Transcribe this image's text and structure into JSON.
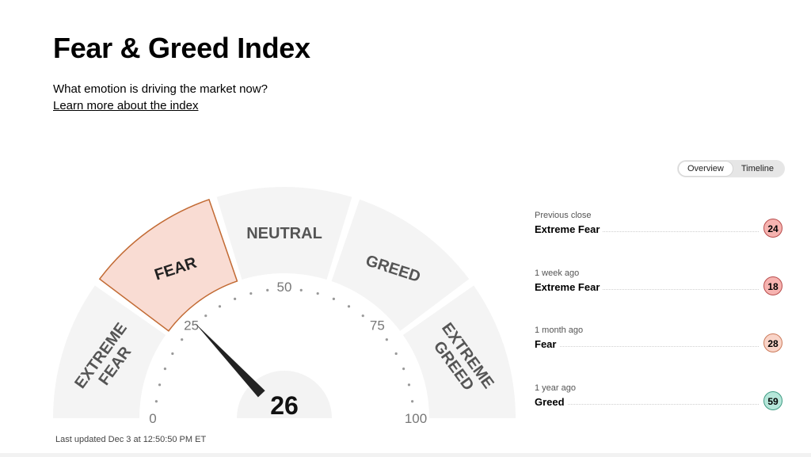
{
  "header": {
    "title": "Fear & Greed Index",
    "subtitle": "What emotion is driving the market now?",
    "learn_more": "Learn more about the index"
  },
  "tabs": [
    {
      "label": "Overview",
      "active": true
    },
    {
      "label": "Timeline",
      "active": false
    }
  ],
  "gauge": {
    "value": 26,
    "value_text": "26",
    "min": 0,
    "max": 100,
    "active_segment": "fear",
    "segments": {
      "extreme_fear": [
        "EXTREME",
        "FEAR"
      ],
      "fear": "FEAR",
      "neutral": "NEUTRAL",
      "greed": "GREED",
      "extreme_greed": [
        "EXTREME",
        "GREED"
      ]
    },
    "ticks": {
      "t0": "0",
      "t25": "25",
      "t50": "50",
      "t75": "75",
      "t100": "100"
    },
    "colors": {
      "active_fill": "#f9dcd3",
      "active_stroke": "#c26a33",
      "inactive": "#f4f4f4",
      "needle": "#222222"
    }
  },
  "history": [
    {
      "label": "Previous close",
      "value": "Extreme Fear",
      "score": "24",
      "rating": "extreme-fear"
    },
    {
      "label": "1 week ago",
      "value": "Extreme Fear",
      "score": "18",
      "rating": "extreme-fear"
    },
    {
      "label": "1 month ago",
      "value": "Fear",
      "score": "28",
      "rating": "fear"
    },
    {
      "label": "1 year ago",
      "value": "Greed",
      "score": "59",
      "rating": "greed"
    }
  ],
  "footer": {
    "last_updated": "Last updated Dec 3 at 12:50:50 PM ET"
  }
}
